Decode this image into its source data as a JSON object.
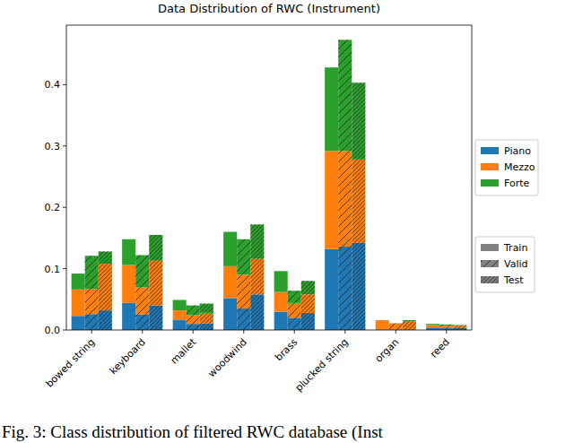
{
  "chart_data": {
    "type": "bar",
    "stacked": true,
    "title": "Data Distribution of RWC (Instrument)",
    "caption": "Fig. 3: Class distribution of filtered RWC database (Inst",
    "categories": [
      "bowed string",
      "keyboard",
      "mallet",
      "woodwind",
      "brass",
      "plucked string",
      "organ",
      "reed"
    ],
    "groups": [
      {
        "name": "Train",
        "marker": "none"
      },
      {
        "name": "Valid",
        "marker": "/"
      },
      {
        "name": "Test",
        "marker": "//"
      }
    ],
    "series": [
      {
        "name": "Piano",
        "color": "#1f77b4",
        "values": [
          [
            0.023,
            0.026,
            0.032
          ],
          [
            0.044,
            0.025,
            0.04
          ],
          [
            0.016,
            0.01,
            0.011
          ],
          [
            0.052,
            0.035,
            0.058
          ],
          [
            0.03,
            0.02,
            0.028
          ],
          [
            0.132,
            0.136,
            0.142
          ],
          [
            0,
            0,
            0
          ],
          [
            0.004,
            0.003,
            0.003
          ]
        ]
      },
      {
        "name": "Mezzo",
        "color": "#ff7f0e",
        "values": [
          [
            0.043,
            0.041,
            0.076
          ],
          [
            0.062,
            0.045,
            0.073
          ],
          [
            0.016,
            0.014,
            0.017
          ],
          [
            0.052,
            0.055,
            0.058
          ],
          [
            0.032,
            0.024,
            0.03
          ],
          [
            0.16,
            0.156,
            0.136
          ],
          [
            0.016,
            0.011,
            0.014
          ],
          [
            0.004,
            0.004,
            0.004
          ]
        ]
      },
      {
        "name": "Forte",
        "color": "#2ca02c",
        "values": [
          [
            0.026,
            0.054,
            0.02
          ],
          [
            0.042,
            0.052,
            0.042
          ],
          [
            0.017,
            0.016,
            0.015
          ],
          [
            0.056,
            0.058,
            0.056
          ],
          [
            0.034,
            0.02,
            0.022
          ],
          [
            0.136,
            0.181,
            0.125
          ],
          [
            0,
            0,
            0.002
          ],
          [
            0.002,
            0.002,
            0.001
          ]
        ]
      }
    ],
    "ylim": [
      0,
      0.497
    ],
    "yticks": [
      {
        "value": 0,
        "label": "0.0"
      },
      {
        "value": 0.1,
        "label": "0.1"
      },
      {
        "value": 0.2,
        "label": "0.2"
      },
      {
        "value": 0.3,
        "label": "0.3"
      },
      {
        "value": 0.4,
        "label": "0.4"
      }
    ],
    "grid": false,
    "legend": "right"
  }
}
